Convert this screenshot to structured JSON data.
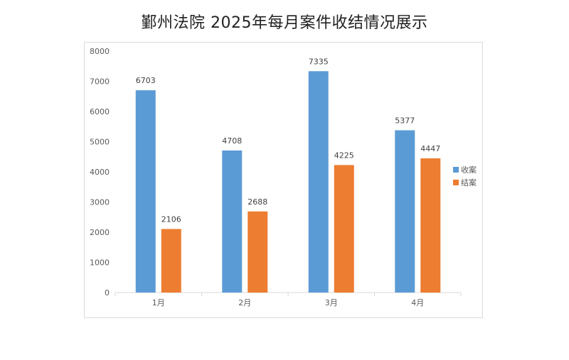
{
  "page": {
    "title": "鄞州法院 2025年每月案件收结情况展示"
  },
  "chart_data": {
    "type": "bar",
    "title": "鄞州法院 2025年每月案件收结情况展示",
    "categories": [
      "1月",
      "2月",
      "3月",
      "4月"
    ],
    "series": [
      {
        "name": "收案",
        "color": "#5b9bd5",
        "values": [
          6703,
          4708,
          7335,
          5377
        ]
      },
      {
        "name": "结案",
        "color": "#ed7d31",
        "values": [
          2106,
          2688,
          4225,
          4447
        ]
      }
    ],
    "ylim": [
      0,
      8000
    ],
    "yticks": [
      0,
      1000,
      2000,
      3000,
      4000,
      5000,
      6000,
      7000,
      8000
    ],
    "xlabel": "",
    "ylabel": "",
    "grid": false,
    "legend_position": "right",
    "data_labels": true
  }
}
